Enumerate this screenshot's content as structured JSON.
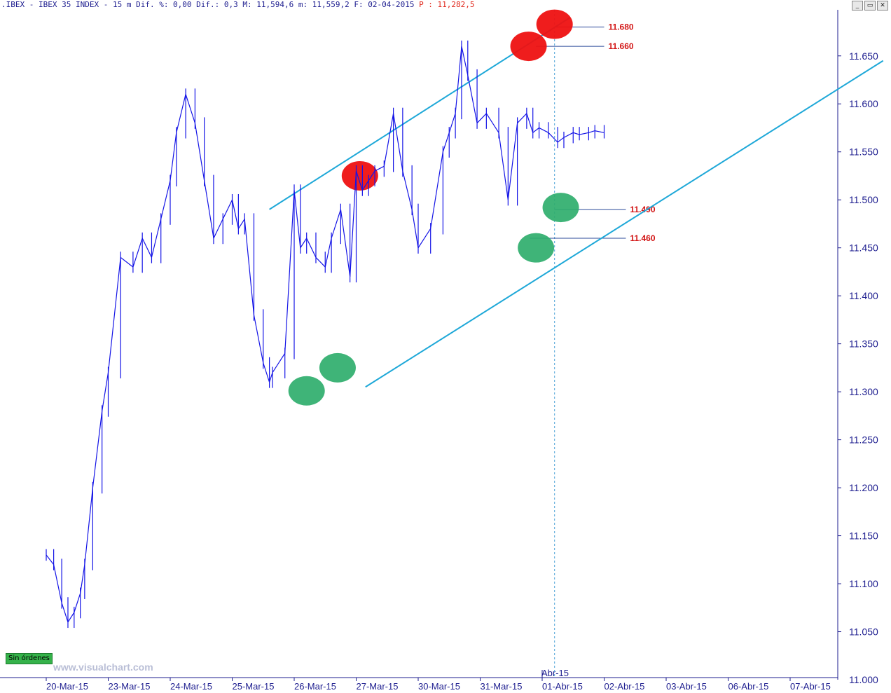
{
  "header": {
    "symbol": ".IBEX",
    "name": "IBEX 35 INDEX",
    "info": "15 m Dif. %: 0,00 Dif.: 0,3 M: 11,594,6 m: 11,559,2 F: 02-04-2015",
    "price_label": "P : 11,282,5"
  },
  "window_buttons": [
    "_",
    "▭",
    "✕"
  ],
  "badge": "Sin órdenes",
  "watermark": "www.visualchart.com",
  "chart_data": {
    "type": "line",
    "title": "",
    "xlabel": "",
    "ylabel": "",
    "ylim": [
      11000,
      11700
    ],
    "yticks": [
      "11.050",
      "11.100",
      "11.150",
      "11.200",
      "11.250",
      "11.300",
      "11.350",
      "11.400",
      "11.450",
      "11.500",
      "11.550",
      "11.600",
      "11.650"
    ],
    "ytick_values": [
      11050,
      11100,
      11150,
      11200,
      11250,
      11300,
      11350,
      11400,
      11450,
      11500,
      11550,
      11600,
      11650
    ],
    "bottom_tick": "11.000",
    "x_labels": [
      "20-Mar-15",
      "23-Mar-15",
      "24-Mar-15",
      "25-Mar-15",
      "26-Mar-15",
      "27-Mar-15",
      "30-Mar-15",
      "31-Mar-15",
      "01-Abr-15",
      "02-Abr-15",
      "03-Abr-15",
      "06-Abr-15",
      "07-Abr-15"
    ],
    "month_marker": "Abr-15",
    "session_span": 1.0,
    "series": [
      {
        "color": "#1414e6",
        "x": [
          0,
          0.12,
          0.25,
          0.35,
          0.45,
          0.55,
          0.62,
          0.75,
          0.9,
          1.0,
          1.2,
          1.4,
          1.55,
          1.7,
          1.85,
          2.0,
          2.1,
          2.25,
          2.4,
          2.55,
          2.7,
          2.85,
          3.0,
          3.1,
          3.2,
          3.35,
          3.5,
          3.6,
          3.65,
          3.85,
          4.0,
          4.1,
          4.2,
          4.35,
          4.5,
          4.6,
          4.75,
          4.9,
          5.0,
          5.1,
          5.2,
          5.3,
          5.45,
          5.6,
          5.75,
          5.9,
          6.0,
          6.2,
          6.4,
          6.5,
          6.6,
          6.7,
          6.8,
          6.95,
          7.1,
          7.3,
          7.45,
          7.6,
          7.75,
          7.85,
          7.95,
          8.1,
          8.25,
          8.35,
          8.5,
          8.6,
          8.75,
          8.85,
          9.0
        ],
        "values": [
          11130,
          11120,
          11080,
          11060,
          11070,
          11090,
          11120,
          11200,
          11280,
          11320,
          11440,
          11430,
          11460,
          11440,
          11480,
          11520,
          11570,
          11610,
          11580,
          11520,
          11460,
          11480,
          11500,
          11470,
          11480,
          11380,
          11330,
          11310,
          11320,
          11340,
          11510,
          11450,
          11460,
          11440,
          11430,
          11460,
          11490,
          11420,
          11530,
          11510,
          11520,
          11530,
          11535,
          11590,
          11530,
          11490,
          11450,
          11470,
          11550,
          11570,
          11590,
          11660,
          11630,
          11580,
          11590,
          11570,
          11500,
          11580,
          11590,
          11570,
          11575,
          11570,
          11560,
          11565,
          11570,
          11568,
          11570,
          11572,
          11570
        ]
      }
    ],
    "trendlines": [
      {
        "color": "#1ea8d8",
        "x": [
          3.6,
          8.45
        ],
        "values": [
          11490,
          11690
        ]
      },
      {
        "color": "#1ea8d8",
        "x": [
          5.15,
          13.5
        ],
        "values": [
          11305,
          11645
        ]
      }
    ],
    "levels": [
      {
        "label": "11.680",
        "value": 11680,
        "x0": 8.2,
        "x1": 9.0
      },
      {
        "label": "11.660",
        "value": 11660,
        "x0": 7.9,
        "x1": 9.0
      },
      {
        "label": "11.490",
        "value": 11490,
        "x0": 8.2,
        "x1": 9.35
      },
      {
        "label": "11.460",
        "value": 11460,
        "x0": 7.8,
        "x1": 9.35
      }
    ],
    "vertical_marker": {
      "x": 8.2
    },
    "highs": [
      {
        "x": 5.06,
        "value": 11525
      },
      {
        "x": 7.78,
        "value": 11660
      },
      {
        "x": 8.2,
        "value": 11683
      }
    ],
    "lows": [
      {
        "x": 4.2,
        "value": 11301
      },
      {
        "x": 4.7,
        "value": 11325
      },
      {
        "x": 7.9,
        "value": 11450
      },
      {
        "x": 8.3,
        "value": 11492
      }
    ],
    "high_color": "#ee1111",
    "low_color": "#2fae6c",
    "grid": false,
    "legend": "none"
  }
}
